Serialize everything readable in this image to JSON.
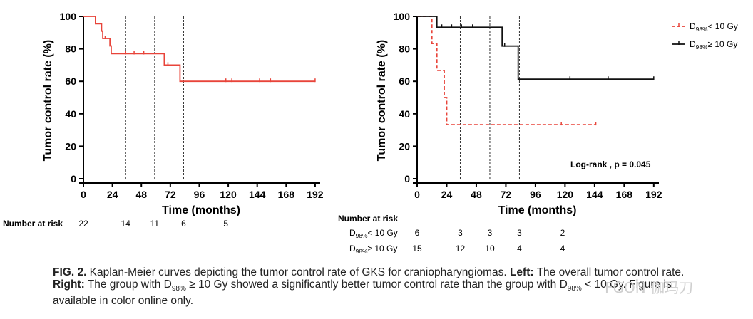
{
  "chart_data": [
    {
      "type": "line",
      "panel": "left",
      "xlabel": "Time (months)",
      "ylabel": "Tumor control rate (%)",
      "xlim": [
        0,
        195
      ],
      "ylim": [
        0,
        100
      ],
      "x_ticks": [
        0,
        24,
        48,
        72,
        96,
        120,
        144,
        168,
        192
      ],
      "y_ticks": [
        0,
        20,
        40,
        60,
        80,
        100
      ],
      "reference_lines_x": [
        35,
        59,
        83
      ],
      "series": [
        {
          "color": "#e8443a",
          "style": "solid",
          "steps": [
            [
              0,
              100
            ],
            [
              10,
              100
            ],
            [
              10,
              95.5
            ],
            [
              15,
              95.5
            ],
            [
              15,
              90.9
            ],
            [
              16,
              90.9
            ],
            [
              16,
              86.4
            ],
            [
              22,
              86.4
            ],
            [
              22,
              81.8
            ],
            [
              23,
              81.8
            ],
            [
              23,
              77
            ],
            [
              67,
              77
            ],
            [
              67,
              70
            ],
            [
              80,
              70
            ],
            [
              80,
              60
            ],
            [
              192,
              60
            ]
          ],
          "censors": [
            [
              18,
              86.4
            ],
            [
              35,
              77
            ],
            [
              42,
              77
            ],
            [
              50,
              77
            ],
            [
              70,
              70
            ],
            [
              118,
              60
            ],
            [
              123,
              60
            ],
            [
              146,
              60
            ],
            [
              155,
              60
            ],
            [
              192,
              60
            ]
          ]
        }
      ],
      "risk_table": {
        "label": "Number at risk",
        "rows": [
          {
            "label": "",
            "values": [
              "22",
              "14",
              "11",
              "6",
              "5"
            ],
            "x": [
              0,
              35,
              59,
              83,
              118
            ]
          }
        ]
      }
    },
    {
      "type": "line",
      "panel": "right",
      "xlabel": "Time (months)",
      "ylabel": "Tumor control rate (%)",
      "xlim": [
        0,
        195
      ],
      "ylim": [
        0,
        100
      ],
      "x_ticks": [
        0,
        24,
        48,
        72,
        96,
        120,
        144,
        168,
        192
      ],
      "y_ticks": [
        0,
        20,
        40,
        60,
        80,
        100
      ],
      "reference_lines_x": [
        35,
        59,
        83
      ],
      "annotation": "Log-rank , p = 0.045",
      "legend_position": "top-right-outside",
      "series": [
        {
          "name_main": "D",
          "name_sub": "98%",
          "name_rest": "< 10 Gy",
          "color": "#e8443a",
          "style": "dashed",
          "steps": [
            [
              0,
              100
            ],
            [
              12,
              100
            ],
            [
              12,
              83.3
            ],
            [
              16,
              83.3
            ],
            [
              16,
              66.7
            ],
            [
              22,
              66.7
            ],
            [
              22,
              50
            ],
            [
              24,
              50
            ],
            [
              24,
              33.3
            ],
            [
              145,
              33.3
            ]
          ],
          "censors": [
            [
              117,
              33.3
            ],
            [
              145,
              33.3
            ]
          ]
        },
        {
          "name_main": "D",
          "name_sub": "98%",
          "name_rest": "≥ 10 Gy",
          "color": "#111111",
          "style": "solid",
          "steps": [
            [
              0,
              100
            ],
            [
              16,
              100
            ],
            [
              16,
              93.3
            ],
            [
              69,
              93.3
            ],
            [
              69,
              81.7
            ],
            [
              82,
              81.7
            ],
            [
              82,
              61.3
            ],
            [
              192,
              61.3
            ]
          ],
          "censors": [
            [
              20,
              93.3
            ],
            [
              28,
              93.3
            ],
            [
              36,
              93.3
            ],
            [
              45,
              93.3
            ],
            [
              71,
              81.7
            ],
            [
              124,
              61.3
            ],
            [
              155,
              61.3
            ],
            [
              192,
              61.3
            ]
          ]
        }
      ],
      "risk_table": {
        "label": "Number at risk",
        "rows": [
          {
            "label_main": "D",
            "label_sub": "98%",
            "label_rest": "< 10 Gy",
            "values": [
              "6",
              "3",
              "3",
              "3",
              "2"
            ],
            "x": [
              0,
              35,
              59,
              83,
              118
            ]
          },
          {
            "label_main": "D",
            "label_sub": "98%",
            "label_rest": "≥ 10 Gy",
            "values": [
              "15",
              "12",
              "10",
              "4",
              "4"
            ],
            "x": [
              0,
              35,
              59,
              83,
              118
            ]
          }
        ]
      }
    }
  ],
  "caption": {
    "line1_bold": "FIG. 2.",
    "line1_text": " Kaplan-Meier curves depicting the tumor control rate of GKS for craniopharyngiomas. ",
    "line1_bold2": "Left:",
    "line1_text2": " The overall tumor control rate.",
    "line2_bold": "Right:",
    "line2_text_a": " The group with D",
    "line2_sub_a": "98%",
    "line2_text_b": " ≥ 10 Gy showed a significantly better tumor control rate than the group with D",
    "line2_sub_b": "98%",
    "line2_text_c": " < 10 Gy. Figure is",
    "line3_text": "available in color online only."
  },
  "watermark": "FGON 伽玛刀"
}
